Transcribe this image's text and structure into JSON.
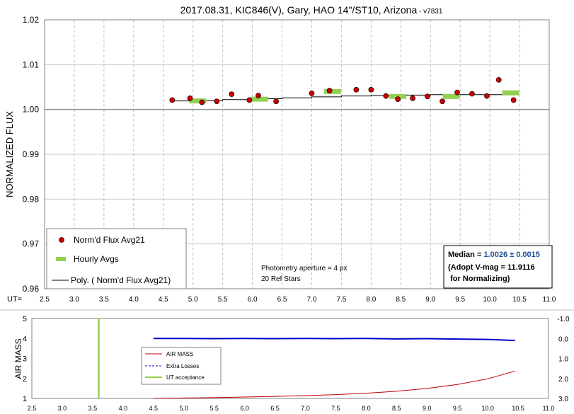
{
  "chart_data": [
    {
      "type": "scatter",
      "title": "2017.08.31, KIC846(V), Gary, HAO 14\"/ST10, Arizona",
      "title_suffix": " - v7831",
      "xlabel": "UT=",
      "ylabel": "NORMALIZED FLUX",
      "xlim": [
        2.5,
        11.0
      ],
      "ylim": [
        0.96,
        1.02
      ],
      "x_ticks": [
        "2.5",
        "3.0",
        "3.5",
        "4.0",
        "4.5",
        "5.0",
        "5.5",
        "6.0",
        "6.5",
        "7.0",
        "7.5",
        "8.0",
        "8.5",
        "9.0",
        "9.5",
        "10.0",
        "10.5",
        "11.0"
      ],
      "y_ticks": [
        "0.96",
        "0.97",
        "0.98",
        "0.99",
        "1.00",
        "1.01",
        "1.02"
      ],
      "grid": true,
      "reference_line": 1.0,
      "series": [
        {
          "name": "Norm'd Flux Avg21",
          "color": "#cc0000",
          "x": [
            4.65,
            4.95,
            5.15,
            5.4,
            5.65,
            5.95,
            6.1,
            6.4,
            7.0,
            7.3,
            7.75,
            8.0,
            8.25,
            8.45,
            8.7,
            8.95,
            9.2,
            9.45,
            9.7,
            9.95,
            10.15,
            10.4
          ],
          "y": [
            1.0021,
            1.0025,
            1.0016,
            1.0018,
            1.0034,
            1.0021,
            1.0031,
            1.0018,
            1.0036,
            1.0042,
            1.0044,
            1.0044,
            1.003,
            1.0023,
            1.0025,
            1.0029,
            1.0018,
            1.0038,
            1.0035,
            1.003,
            1.0066,
            1.0021
          ]
        },
        {
          "name": "Hourly Avgs",
          "color": "#92d050",
          "x": [
            5.08,
            6.12,
            7.35,
            8.45,
            9.35,
            10.35
          ],
          "y": [
            1.0019,
            1.0023,
            1.004,
            1.0029,
            1.0029,
            1.0037
          ]
        },
        {
          "name": "Poly. ( Norm'd Flux Avg21)",
          "color": "#000000",
          "x": [
            4.65,
            5.0,
            5.5,
            6.0,
            6.5,
            7.0,
            7.5,
            8.0,
            8.5,
            9.0,
            9.5,
            10.0,
            10.45
          ],
          "y": [
            1.0019,
            1.002,
            1.0022,
            1.0024,
            1.0026,
            1.0028,
            1.003,
            1.0031,
            1.0032,
            1.0033,
            1.0033,
            1.0033,
            1.0033
          ]
        }
      ],
      "annotations": {
        "aperture": "Photometry aperture = 4 px",
        "ref_stars": "20 Ref Stars",
        "median_label": "Median = ",
        "median_value": "1.0026 ± 0.0015",
        "adopt": "(Adopt V-mag = 11.9116",
        "normalizing": " for Normalizing)"
      }
    },
    {
      "type": "line",
      "xlabel": "",
      "ylabel": "AIR MASS",
      "xlim": [
        2.5,
        11.0
      ],
      "ylim": [
        1,
        5
      ],
      "y2lim": [
        3.0,
        -1.0
      ],
      "x_ticks": [
        "2.5",
        "3.0",
        "3.5",
        "4.0",
        "4.5",
        "5.0",
        "5.5",
        "6.0",
        "6.5",
        "7.0",
        "7.5",
        "8.0",
        "8.5",
        "9.0",
        "9.5",
        "10.0",
        "10.5",
        "11.0"
      ],
      "y_ticks": [
        "1",
        "2",
        "3",
        "4",
        "5"
      ],
      "y2_ticks": [
        "-1.0",
        "0.0",
        "1.0",
        "2.0",
        "3.0"
      ],
      "series": [
        {
          "name": "AIR MASS",
          "color": "#c00000",
          "x": [
            4.5,
            5.0,
            5.5,
            6.0,
            6.5,
            7.0,
            7.5,
            8.0,
            8.5,
            9.0,
            9.5,
            10.0,
            10.45
          ],
          "y": [
            1.0,
            1.02,
            1.04,
            1.07,
            1.1,
            1.14,
            1.19,
            1.26,
            1.36,
            1.5,
            1.7,
            1.98,
            2.37
          ]
        },
        {
          "name": "Extra Losses",
          "color": "#0000cc",
          "axis": "right",
          "x": [
            4.5,
            5.0,
            5.5,
            6.0,
            6.5,
            7.0,
            7.5,
            8.0,
            8.5,
            9.0,
            9.5,
            10.0,
            10.45
          ],
          "y": [
            0.0,
            0.0,
            0.01,
            0.0,
            0.01,
            0.0,
            0.01,
            0.0,
            0.02,
            0.01,
            0.03,
            0.05,
            0.1
          ]
        },
        {
          "name": "UT acceptance",
          "color": "#92d050",
          "x": [
            3.6,
            3.6
          ],
          "y": [
            1,
            5
          ]
        }
      ]
    }
  ]
}
